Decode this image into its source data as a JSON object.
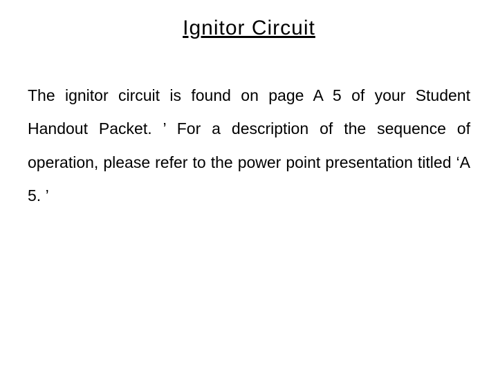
{
  "slide": {
    "title": "Ignitor  Circuit",
    "body": "The ignitor circuit is found on page A 5 of your Student Handout Packet. ’  For a description of the sequence of operation, please refer to the power point presentation titled ‘A 5. ’",
    "background_color": "#ffffff",
    "text_color": "#000000",
    "title_fontsize": 30,
    "body_fontsize": 23,
    "title_underline": true,
    "font_family": "Arial"
  }
}
